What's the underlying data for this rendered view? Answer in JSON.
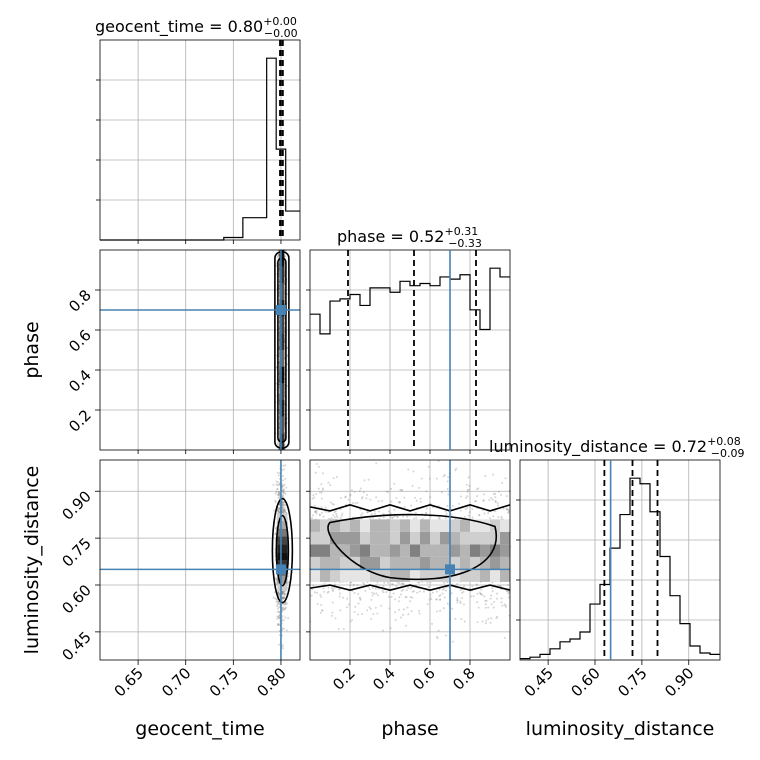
{
  "chart_data": {
    "type": "corner",
    "parameters": [
      "geocent_time",
      "phase",
      "luminosity_distance"
    ],
    "titles": {
      "geocent_time": {
        "label": "geocent_time",
        "median": "0.80",
        "plus": "+0.00",
        "minus": "−0.00"
      },
      "phase": {
        "label": "phase",
        "median": "0.52",
        "plus": "+0.31",
        "minus": "−0.33"
      },
      "luminosity_distance": {
        "label": "luminosity_distance",
        "median": "0.72",
        "plus": "+0.08",
        "minus": "−0.09"
      }
    },
    "truths": {
      "geocent_time": 0.8,
      "phase": 0.7,
      "luminosity_distance": 0.65
    },
    "ranges": {
      "geocent_time": [
        0.61,
        0.82
      ],
      "phase": [
        0.0,
        1.0
      ],
      "luminosity_distance": [
        0.36,
        1.0
      ]
    },
    "ticks": {
      "geocent_time": [
        0.65,
        0.7,
        0.75,
        0.8
      ],
      "phase_x": [
        0.2,
        0.4,
        0.6,
        0.8
      ],
      "phase_y": [
        0.2,
        0.4,
        0.6,
        0.8
      ],
      "luminosity_distance_x": [
        0.45,
        0.6,
        0.75,
        0.9
      ],
      "luminosity_distance_y": [
        0.45,
        0.6,
        0.75,
        0.9
      ]
    },
    "tick_labels": {
      "geocent_time": [
        "0.65",
        "0.70",
        "0.75",
        "0.80"
      ],
      "phase": [
        "0.2",
        "0.4",
        "0.6",
        "0.8"
      ],
      "luminosity_distance": [
        "0.45",
        "0.60",
        "0.75",
        "0.90"
      ]
    },
    "quantiles": {
      "geocent_time": [
        0.799,
        0.8,
        0.802
      ],
      "phase": [
        0.19,
        0.52,
        0.83
      ],
      "luminosity_distance": [
        0.63,
        0.72,
        0.8
      ]
    },
    "histograms": {
      "geocent_time": {
        "edges": [
          0.61,
          0.74,
          0.76,
          0.785,
          0.795,
          0.805,
          0.815,
          0.82
        ],
        "counts": [
          0,
          0.03,
          0.27,
          2.2,
          1.1,
          0.35,
          0.35
        ]
      },
      "phase": {
        "edges": [
          0,
          0.05,
          0.1,
          0.15,
          0.2,
          0.25,
          0.3,
          0.35,
          0.4,
          0.45,
          0.5,
          0.55,
          0.6,
          0.65,
          0.7,
          0.75,
          0.8,
          0.85,
          0.9,
          0.95,
          1.0
        ],
        "counts": [
          0.62,
          0.53,
          0.68,
          0.69,
          0.71,
          0.66,
          0.74,
          0.74,
          0.72,
          0.77,
          0.75,
          0.76,
          0.75,
          0.79,
          0.78,
          0.8,
          0.64,
          0.55,
          0.83,
          0.79
        ]
      },
      "luminosity_distance": {
        "edges": [
          0.36,
          0.392,
          0.424,
          0.456,
          0.488,
          0.52,
          0.552,
          0.584,
          0.616,
          0.648,
          0.68,
          0.712,
          0.744,
          0.776,
          0.808,
          0.84,
          0.872,
          0.904,
          0.936,
          0.968,
          1.0
        ],
        "counts": [
          0.5,
          1.0,
          2.0,
          4.0,
          6.5,
          7.5,
          10,
          20,
          27,
          40,
          52,
          65,
          63,
          53,
          37,
          23,
          13,
          5,
          2.5,
          2.0
        ]
      }
    }
  }
}
